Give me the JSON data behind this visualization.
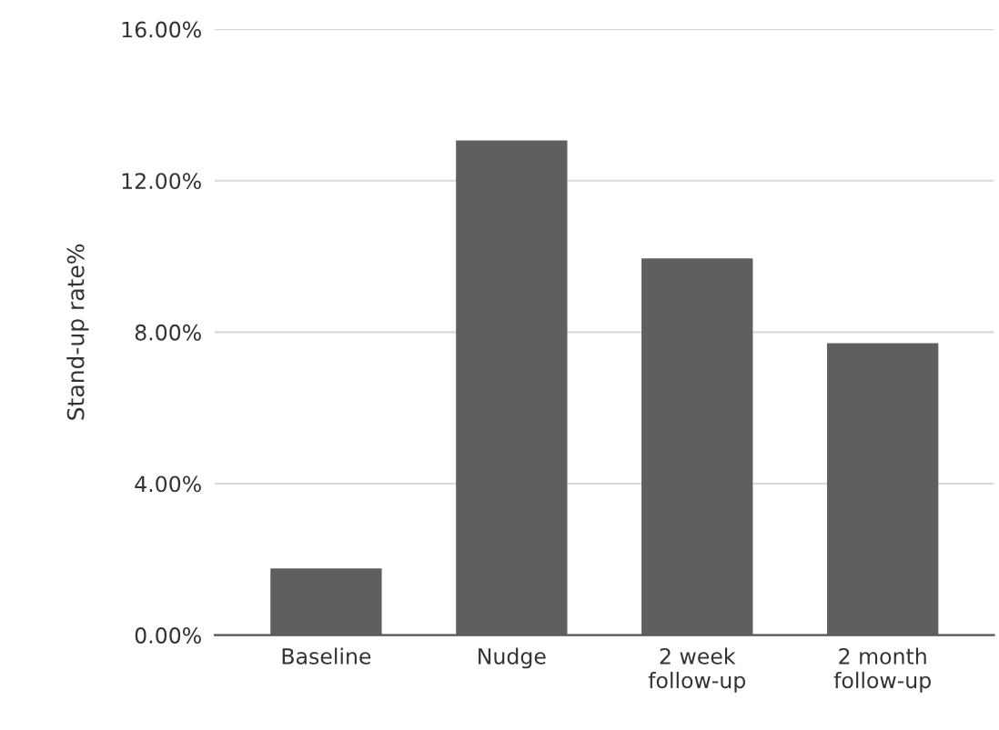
{
  "chart_data": {
    "type": "bar",
    "ylabel": "Stand-up rate%",
    "categories": [
      "Baseline",
      "Nudge",
      "2 week\nfollow-up",
      "2 month\nfollow-up"
    ],
    "values": [
      1.76,
      13.06,
      9.95,
      7.71
    ],
    "color": "#5f5f5f",
    "ylim": [
      0,
      16
    ],
    "yticks": [
      {
        "value": 0,
        "label": "0.00%"
      },
      {
        "value": 4,
        "label": "4.00%"
      },
      {
        "value": 8,
        "label": "8.00%"
      },
      {
        "value": 12,
        "label": "12.00%"
      },
      {
        "value": 16,
        "label": "16.00%"
      }
    ],
    "grid": "y"
  }
}
